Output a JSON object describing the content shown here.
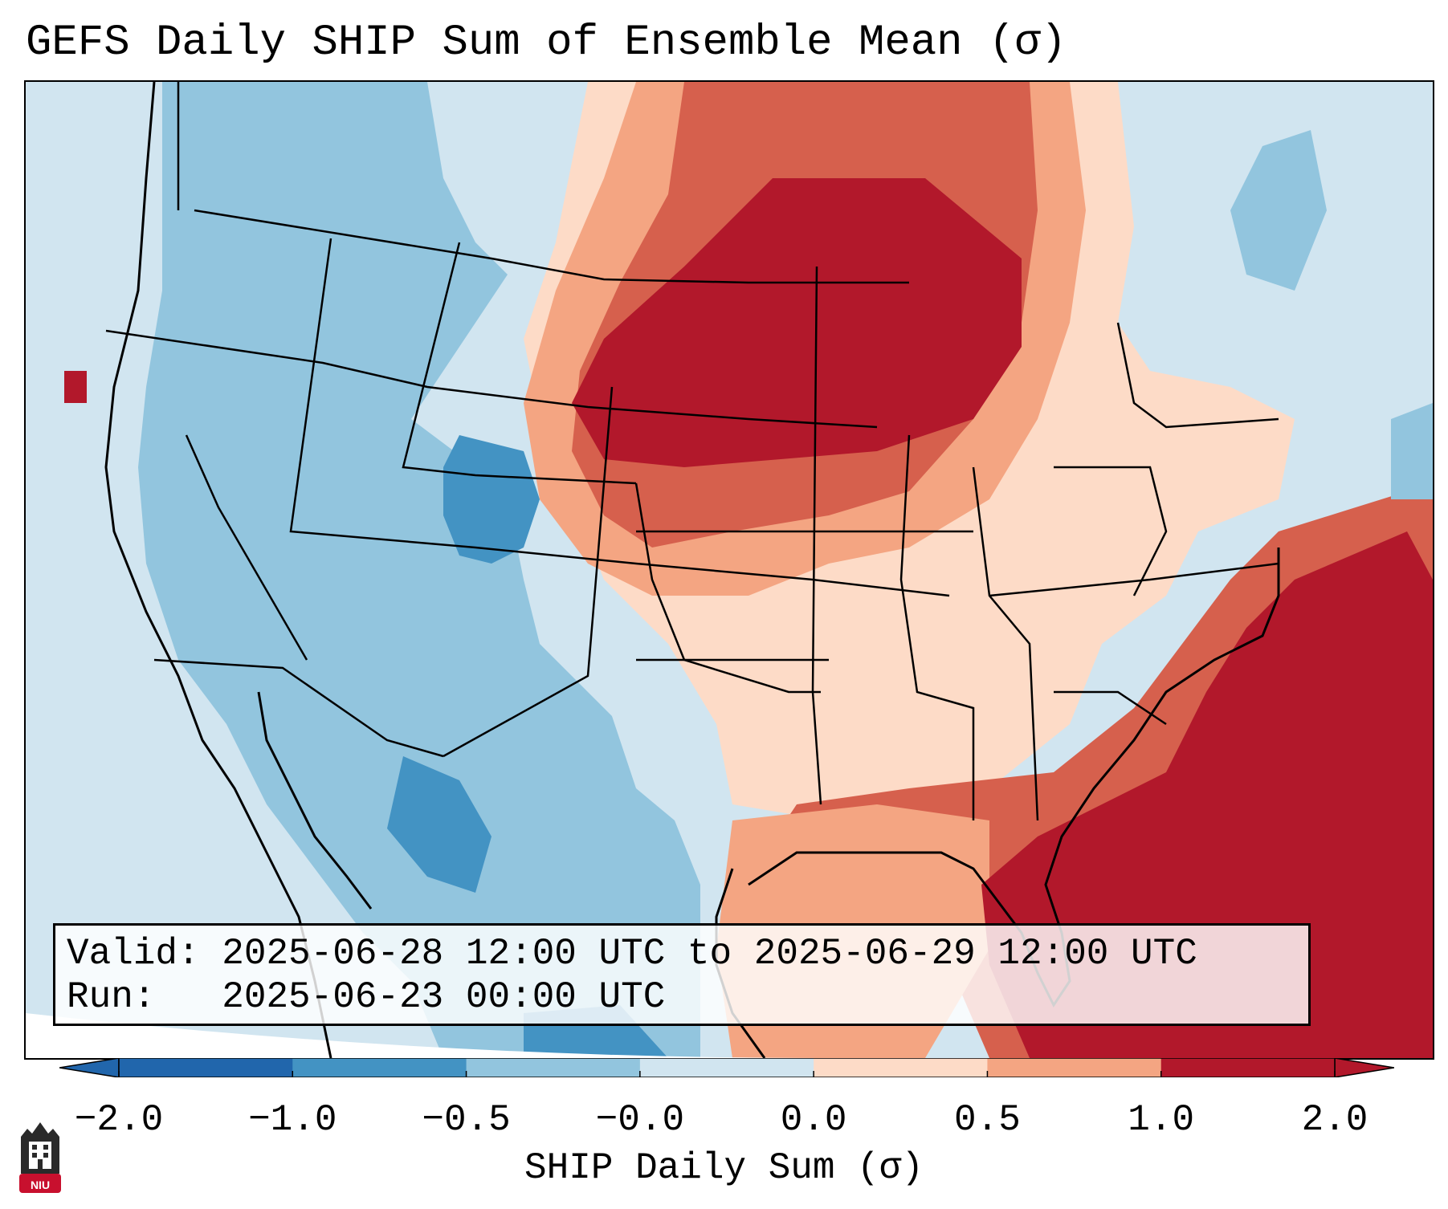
{
  "title": "GEFS Daily SHIP Sum of Ensemble Mean (σ)",
  "info": {
    "valid": "Valid: 2025-06-28 12:00 UTC to 2025-06-29 12:00 UTC",
    "run": "Run:   2025-06-23 00:00 UTC"
  },
  "colorbar": {
    "label": "SHIP Daily Sum (σ)",
    "ticks": [
      "-2.0",
      "-1.0",
      "-0.5",
      "-0.0",
      "0.0",
      "0.5",
      "1.0",
      "2.0"
    ],
    "bins": [
      "#2166ac",
      "#4393c3",
      "#92c5de",
      "#d1e5f0",
      "#fddbc7",
      "#f4a582",
      "#d6604d",
      "#b2182b"
    ],
    "extend_low": "#2166ac",
    "extend_high": "#b2182b"
  },
  "legend_colors": {
    "neg_strong": "#4393c3",
    "neg_moderate": "#92c5de",
    "neg_weak": "#d1e5f0",
    "pos_weak": "#fddbc7",
    "pos_moderate": "#f4a582",
    "pos_strong": "#d6604d",
    "pos_extreme": "#b2182b"
  },
  "logo": {
    "text": "NIU",
    "icon": "university-tower-icon"
  }
}
